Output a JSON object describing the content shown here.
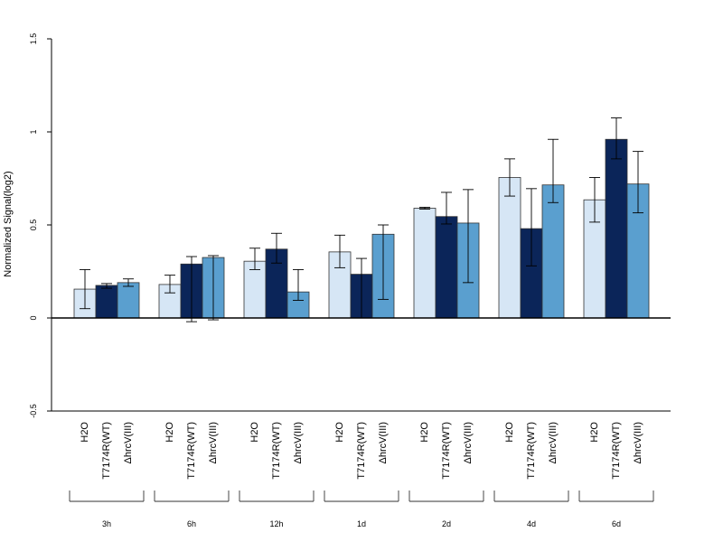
{
  "chart_data": {
    "type": "bar",
    "ylabel": "Normalized Signal(log2)",
    "ylim": [
      -0.5,
      1.5
    ],
    "yticks": [
      -0.5,
      0,
      0.5,
      1,
      1.5
    ],
    "ytick_labels": [
      "-0.5",
      "0",
      "0.5",
      "1",
      "1.5"
    ],
    "series_labels": [
      "H2O",
      "T7174R(WT)",
      "ΔhrcV(III)"
    ],
    "colors": [
      "#d6e6f5",
      "#0b2559",
      "#5a9fcf"
    ],
    "groups": [
      {
        "label": "3h",
        "values": [
          0.155,
          0.175,
          0.19
        ],
        "errors": [
          [
            0.05,
            0.26
          ],
          [
            0.16,
            0.185
          ],
          [
            0.17,
            0.21
          ]
        ]
      },
      {
        "label": "6h",
        "values": [
          0.18,
          0.29,
          0.325
        ],
        "errors": [
          [
            0.135,
            0.23
          ],
          [
            -0.02,
            0.33
          ],
          [
            -0.01,
            0.335
          ]
        ]
      },
      {
        "label": "12h",
        "values": [
          0.305,
          0.37,
          0.14
        ],
        "errors": [
          [
            0.26,
            0.375
          ],
          [
            0.295,
            0.455
          ],
          [
            0.095,
            0.26
          ]
        ]
      },
      {
        "label": "1d",
        "values": [
          0.355,
          0.235,
          0.45
        ],
        "errors": [
          [
            0.27,
            0.445
          ],
          [
            0.0,
            0.32
          ],
          [
            0.1,
            0.5
          ]
        ]
      },
      {
        "label": "2d",
        "values": [
          0.59,
          0.545,
          0.51
        ],
        "errors": [
          [
            0.585,
            0.595
          ],
          [
            0.505,
            0.675
          ],
          [
            0.19,
            0.69
          ]
        ]
      },
      {
        "label": "4d",
        "values": [
          0.755,
          0.48,
          0.715
        ],
        "errors": [
          [
            0.655,
            0.855
          ],
          [
            0.28,
            0.695
          ],
          [
            0.62,
            0.96
          ]
        ]
      },
      {
        "label": "6d",
        "values": [
          0.635,
          0.96,
          0.72
        ],
        "errors": [
          [
            0.515,
            0.755
          ],
          [
            0.855,
            1.075
          ],
          [
            0.565,
            0.895
          ]
        ]
      }
    ]
  }
}
